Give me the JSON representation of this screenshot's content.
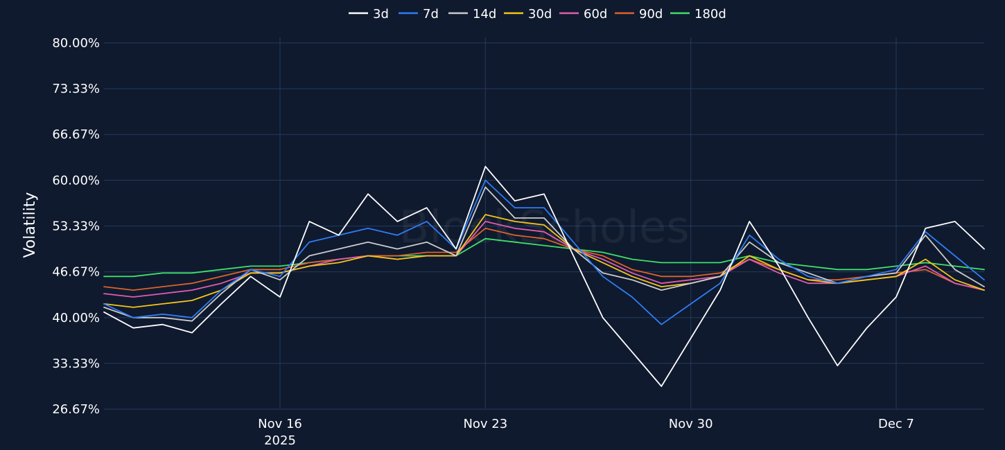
{
  "chart_data": {
    "type": "line",
    "title": "",
    "xlabel": "",
    "ylabel": "Volatility",
    "watermark": "BlockScholes",
    "y_ticks": [
      "26.67%",
      "33.33%",
      "40.00%",
      "46.67%",
      "53.33%",
      "60.00%",
      "66.67%",
      "73.33%",
      "80.00%"
    ],
    "y_tick_values": [
      26.67,
      33.33,
      40.0,
      46.67,
      53.33,
      60.0,
      66.67,
      73.33,
      80.0
    ],
    "ylim": [
      26.67,
      80.0
    ],
    "x_range": [
      "2025-11-10",
      "2025-12-10"
    ],
    "x_ticks": [
      {
        "date": "2025-11-16",
        "label": "Nov 16",
        "sublabel": "2025"
      },
      {
        "date": "2025-11-23",
        "label": "Nov 23",
        "sublabel": ""
      },
      {
        "date": "2025-11-30",
        "label": "Nov 30",
        "sublabel": ""
      },
      {
        "date": "2025-12-07",
        "label": "Dec 7",
        "sublabel": ""
      }
    ],
    "grid": true,
    "legend": "top-center",
    "x": [
      "2025-11-10",
      "2025-11-11",
      "2025-11-12",
      "2025-11-13",
      "2025-11-14",
      "2025-11-15",
      "2025-11-16",
      "2025-11-17",
      "2025-11-18",
      "2025-11-19",
      "2025-11-20",
      "2025-11-21",
      "2025-11-22",
      "2025-11-23",
      "2025-11-24",
      "2025-11-25",
      "2025-11-26",
      "2025-11-27",
      "2025-11-28",
      "2025-11-29",
      "2025-11-30",
      "2025-12-01",
      "2025-12-02",
      "2025-12-03",
      "2025-12-04",
      "2025-12-05",
      "2025-12-06",
      "2025-12-07",
      "2025-12-08",
      "2025-12-09",
      "2025-12-10"
    ],
    "series": [
      {
        "name": "3d",
        "color": "#ffffff",
        "values": [
          40.8,
          38.5,
          39.0,
          37.8,
          42.0,
          46.0,
          43.0,
          54.0,
          52.0,
          58.0,
          54.0,
          56.0,
          50.0,
          62.0,
          57.0,
          58.0,
          49.0,
          40.0,
          35.0,
          30.0,
          37.0,
          44.0,
          54.0,
          47.5,
          40.0,
          33.0,
          38.5,
          43.0,
          53.0,
          54.0,
          50.0
        ]
      },
      {
        "name": "7d",
        "color": "#2f7df6",
        "values": [
          42.0,
          40.0,
          40.5,
          40.0,
          44.0,
          47.0,
          46.0,
          51.0,
          52.0,
          53.0,
          52.0,
          54.0,
          50.0,
          60.0,
          56.0,
          56.0,
          51.0,
          46.0,
          43.0,
          39.0,
          42.0,
          45.0,
          52.0,
          48.5,
          46.0,
          45.0,
          46.0,
          47.0,
          52.5,
          49.0,
          45.5
        ]
      },
      {
        "name": "14d",
        "color": "#cccccc",
        "values": [
          41.5,
          40.0,
          40.0,
          39.5,
          43.5,
          47.0,
          45.5,
          49.0,
          50.0,
          51.0,
          50.0,
          51.0,
          49.0,
          59.0,
          54.5,
          54.5,
          50.0,
          46.5,
          45.5,
          44.0,
          45.0,
          46.0,
          51.0,
          48.0,
          46.5,
          45.0,
          46.0,
          46.5,
          52.0,
          47.0,
          44.5
        ]
      },
      {
        "name": "30d",
        "color": "#f5c518",
        "values": [
          42.0,
          41.5,
          42.0,
          42.5,
          44.0,
          46.5,
          46.5,
          47.5,
          48.0,
          49.0,
          48.5,
          49.0,
          49.0,
          55.0,
          54.0,
          53.5,
          50.0,
          48.0,
          46.0,
          44.5,
          45.0,
          46.0,
          49.0,
          47.0,
          45.5,
          45.0,
          45.5,
          46.0,
          48.5,
          45.5,
          44.0
        ]
      },
      {
        "name": "60d",
        "color": "#e35bb0",
        "values": [
          43.5,
          43.0,
          43.5,
          44.0,
          45.0,
          46.5,
          46.5,
          47.5,
          48.5,
          49.0,
          48.5,
          49.0,
          49.0,
          54.0,
          53.0,
          52.5,
          50.0,
          48.5,
          46.5,
          45.0,
          45.5,
          46.0,
          48.5,
          46.5,
          45.0,
          45.0,
          45.5,
          46.0,
          47.5,
          45.0,
          44.0
        ]
      },
      {
        "name": "90d",
        "color": "#e0622b",
        "values": [
          44.5,
          44.0,
          44.5,
          45.0,
          46.0,
          47.0,
          47.0,
          48.0,
          48.5,
          49.0,
          49.0,
          49.5,
          49.5,
          53.0,
          52.0,
          51.5,
          50.0,
          49.0,
          47.0,
          46.0,
          46.0,
          46.5,
          48.5,
          47.0,
          45.5,
          45.5,
          46.0,
          46.5,
          47.0,
          45.0,
          44.0
        ]
      },
      {
        "name": "180d",
        "color": "#3fe06a",
        "values": [
          46.0,
          46.0,
          46.5,
          46.5,
          47.0,
          47.5,
          47.5,
          48.0,
          48.5,
          49.0,
          49.0,
          49.0,
          49.0,
          51.5,
          51.0,
          50.5,
          50.0,
          49.5,
          48.5,
          48.0,
          48.0,
          48.0,
          49.0,
          48.0,
          47.5,
          47.0,
          47.0,
          47.5,
          48.0,
          47.5,
          47.0
        ]
      }
    ]
  }
}
